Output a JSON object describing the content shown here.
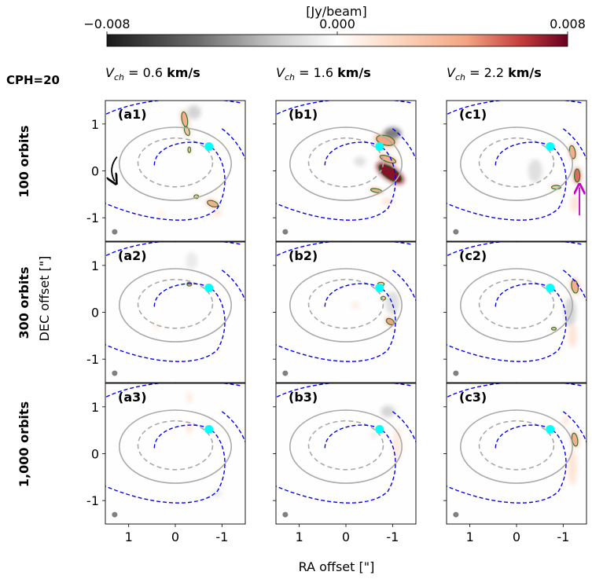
{
  "chart_data": {
    "type": "heatmap",
    "title": "CPH=20",
    "colorbar": {
      "label": "[Jy/beam]",
      "min": -0.008,
      "max": 0.008,
      "ticks": [
        {
          "value": -0.008,
          "label": "−0.008"
        },
        {
          "value": 0.0,
          "label": "0.000"
        },
        {
          "value": 0.008,
          "label": "0.008"
        }
      ],
      "colormap": "RdGy_r",
      "colors": {
        "neg": "#1a1a1a",
        "mid": "#ffffff",
        "pos": "#67001f"
      }
    },
    "xlabel": "RA offset [\"]",
    "ylabel": "DEC offset [\"]",
    "xlim": [
      1.5,
      -1.5
    ],
    "ylim": [
      -1.5,
      1.5
    ],
    "xticks": [
      {
        "value": 1,
        "label": "1"
      },
      {
        "value": 0,
        "label": "0"
      },
      {
        "value": -1,
        "label": "-1"
      }
    ],
    "yticks": [
      {
        "value": 1,
        "label": "1"
      },
      {
        "value": 0,
        "label": "0"
      },
      {
        "value": -1,
        "label": "-1"
      }
    ],
    "columns": [
      {
        "vch_prefix": "V",
        "vch_sub": "ch",
        "vch_value": " = 0.6 ",
        "vch_unit": "km/s"
      },
      {
        "vch_prefix": "V",
        "vch_sub": "ch",
        "vch_value": " = 1.6 ",
        "vch_unit": "km/s"
      },
      {
        "vch_prefix": "V",
        "vch_sub": "ch",
        "vch_value": " = 2.2 ",
        "vch_unit": "km/s"
      }
    ],
    "rows": [
      {
        "label": "100 orbits"
      },
      {
        "label": "300 orbits"
      },
      {
        "label": "1,000 orbits"
      }
    ],
    "panels": [
      {
        "label": "(a1)",
        "row": 0,
        "col": 0,
        "blobs": [
          {
            "x": -0.2,
            "y": 1.1,
            "rx": 0.06,
            "ry": 0.16,
            "rot": 10,
            "v": 0.004,
            "contour": true
          },
          {
            "x": -0.25,
            "y": 0.85,
            "rx": 0.05,
            "ry": 0.1,
            "rot": 20,
            "v": 0.003,
            "contour": true
          },
          {
            "x": -0.3,
            "y": 0.45,
            "rx": 0.03,
            "ry": 0.06,
            "rot": 0,
            "v": 0.003,
            "contour": true
          },
          {
            "x": -0.4,
            "y": 1.25,
            "rx": 0.12,
            "ry": 0.12,
            "rot": 0,
            "v": -0.002,
            "contour": false
          },
          {
            "x": -0.45,
            "y": -0.55,
            "rx": 0.05,
            "ry": 0.04,
            "rot": 0,
            "v": 0.003,
            "contour": true
          },
          {
            "x": -0.8,
            "y": -0.7,
            "rx": 0.12,
            "ry": 0.06,
            "rot": -20,
            "v": 0.004,
            "contour": true
          },
          {
            "x": -0.9,
            "y": -0.9,
            "rx": 0.08,
            "ry": 0.05,
            "rot": 0,
            "v": 0.0015,
            "contour": false
          },
          {
            "x": 0.3,
            "y": -0.9,
            "rx": 0.05,
            "ry": 0.05,
            "rot": 0,
            "v": 0.001,
            "contour": false
          }
        ]
      },
      {
        "label": "(b1)",
        "row": 0,
        "col": 1,
        "blobs": [
          {
            "x": -0.85,
            "y": 0.65,
            "rx": 0.2,
            "ry": 0.1,
            "rot": -15,
            "v": 0.0045,
            "contour": true
          },
          {
            "x": -1.0,
            "y": 0.8,
            "rx": 0.15,
            "ry": 0.1,
            "rot": 0,
            "v": -0.005,
            "contour": false
          },
          {
            "x": -0.9,
            "y": 0.25,
            "rx": 0.18,
            "ry": 0.06,
            "rot": -20,
            "v": 0.004,
            "contour": true
          },
          {
            "x": -0.95,
            "y": -0.05,
            "rx": 0.28,
            "ry": 0.12,
            "rot": -35,
            "v": 0.0075,
            "contour": true
          },
          {
            "x": -0.65,
            "y": -0.42,
            "rx": 0.12,
            "ry": 0.04,
            "rot": -10,
            "v": 0.004,
            "contour": true
          },
          {
            "x": -0.9,
            "y": -0.65,
            "rx": 0.1,
            "ry": 0.06,
            "rot": 0,
            "v": 0.0015,
            "contour": false
          },
          {
            "x": -0.3,
            "y": 0.2,
            "rx": 0.1,
            "ry": 0.08,
            "rot": 0,
            "v": -0.0015,
            "contour": false
          }
        ]
      },
      {
        "label": "(c1)",
        "row": 0,
        "col": 2,
        "blobs": [
          {
            "x": -1.2,
            "y": 0.4,
            "rx": 0.06,
            "ry": 0.14,
            "rot": 10,
            "v": 0.004,
            "contour": true
          },
          {
            "x": -1.3,
            "y": -0.1,
            "rx": 0.06,
            "ry": 0.14,
            "rot": 0,
            "v": 0.0055,
            "contour": true
          },
          {
            "x": -0.85,
            "y": -0.35,
            "rx": 0.1,
            "ry": 0.04,
            "rot": 0,
            "v": 0.003,
            "contour": true
          },
          {
            "x": -1.25,
            "y": -0.7,
            "rx": 0.08,
            "ry": 0.15,
            "rot": 0,
            "v": 0.0015,
            "contour": false
          },
          {
            "x": -0.4,
            "y": 0.0,
            "rx": 0.12,
            "ry": 0.2,
            "rot": 0,
            "v": -0.0015,
            "contour": false
          }
        ]
      },
      {
        "label": "(a2)",
        "row": 1,
        "col": 0,
        "blobs": [
          {
            "x": -0.3,
            "y": 0.6,
            "rx": 0.05,
            "ry": 0.04,
            "rot": 0,
            "v": 0.003,
            "contour": true
          },
          {
            "x": -0.35,
            "y": 1.1,
            "rx": 0.1,
            "ry": 0.15,
            "rot": 0,
            "v": -0.001,
            "contour": false
          },
          {
            "x": 0.4,
            "y": -0.3,
            "rx": 0.05,
            "ry": 0.05,
            "rot": 0,
            "v": 0.001,
            "contour": false
          }
        ]
      },
      {
        "label": "(b2)",
        "row": 1,
        "col": 1,
        "blobs": [
          {
            "x": -0.75,
            "y": 0.6,
            "rx": 0.07,
            "ry": 0.04,
            "rot": 0,
            "v": 0.003,
            "contour": true
          },
          {
            "x": -0.8,
            "y": 0.3,
            "rx": 0.05,
            "ry": 0.04,
            "rot": 0,
            "v": 0.003,
            "contour": true
          },
          {
            "x": -0.95,
            "y": -0.2,
            "rx": 0.09,
            "ry": 0.06,
            "rot": -30,
            "v": 0.0045,
            "contour": true
          },
          {
            "x": -1.0,
            "y": 0.2,
            "rx": 0.12,
            "ry": 0.2,
            "rot": 0,
            "v": -0.0015,
            "contour": false
          },
          {
            "x": -0.2,
            "y": 0.15,
            "rx": 0.08,
            "ry": 0.06,
            "rot": 0,
            "v": 0.001,
            "contour": false
          }
        ]
      },
      {
        "label": "(c2)",
        "row": 1,
        "col": 2,
        "blobs": [
          {
            "x": -1.25,
            "y": 0.55,
            "rx": 0.07,
            "ry": 0.14,
            "rot": 10,
            "v": 0.004,
            "contour": true
          },
          {
            "x": -0.8,
            "y": -0.35,
            "rx": 0.05,
            "ry": 0.03,
            "rot": 0,
            "v": 0.003,
            "contour": true
          },
          {
            "x": -1.15,
            "y": 0.0,
            "rx": 0.1,
            "ry": 0.25,
            "rot": 0,
            "v": -0.002,
            "contour": false
          },
          {
            "x": -1.2,
            "y": -0.5,
            "rx": 0.08,
            "ry": 0.2,
            "rot": 0,
            "v": 0.0015,
            "contour": false
          }
        ]
      },
      {
        "label": "(a3)",
        "row": 2,
        "col": 0,
        "blobs": [
          {
            "x": -0.3,
            "y": 0.55,
            "rx": 0.05,
            "ry": 0.1,
            "rot": 0,
            "v": 0.0015,
            "contour": false
          },
          {
            "x": -0.3,
            "y": 1.2,
            "rx": 0.05,
            "ry": 0.1,
            "rot": 0,
            "v": 0.0012,
            "contour": false
          },
          {
            "x": -0.9,
            "y": -0.85,
            "rx": 0.08,
            "ry": 0.06,
            "rot": 0,
            "v": -0.001,
            "contour": false
          }
        ]
      },
      {
        "label": "(b3)",
        "row": 2,
        "col": 1,
        "blobs": [
          {
            "x": -0.9,
            "y": 0.9,
            "rx": 0.12,
            "ry": 0.1,
            "rot": 0,
            "v": -0.002,
            "contour": false
          },
          {
            "x": -1.1,
            "y": 0.2,
            "rx": 0.08,
            "ry": 0.3,
            "rot": 0,
            "v": 0.0012,
            "contour": false
          },
          {
            "x": -0.6,
            "y": 0.4,
            "rx": 0.06,
            "ry": 0.06,
            "rot": 0,
            "v": -0.001,
            "contour": false
          }
        ]
      },
      {
        "label": "(c3)",
        "row": 2,
        "col": 2,
        "blobs": [
          {
            "x": -1.25,
            "y": 0.3,
            "rx": 0.06,
            "ry": 0.14,
            "rot": 10,
            "v": 0.004,
            "contour": true
          },
          {
            "x": -1.2,
            "y": -0.3,
            "rx": 0.08,
            "ry": 0.3,
            "rot": 0,
            "v": 0.0015,
            "contour": false
          },
          {
            "x": -1.05,
            "y": 0.7,
            "rx": 0.06,
            "ry": 0.1,
            "rot": 0,
            "v": 0.0012,
            "contour": false
          }
        ]
      }
    ],
    "overlays": {
      "planet": {
        "x": -0.72,
        "y": 0.52,
        "color": "#00ffff"
      },
      "beam_color": "#808080",
      "solid_ellipse": {
        "cx": 0.0,
        "cy": 0.15,
        "rx": 1.2,
        "ry": 0.78,
        "color": "#aaaaaa"
      },
      "dashed_ellipse": {
        "cx": 0.0,
        "cy": 0.18,
        "rx": 0.8,
        "ry": 0.52,
        "color": "#aaaaaa"
      },
      "spiral_color": "#0000ff",
      "curved_arrow_color": "#000000",
      "straight_arrow_color": "#cc00cc"
    }
  }
}
